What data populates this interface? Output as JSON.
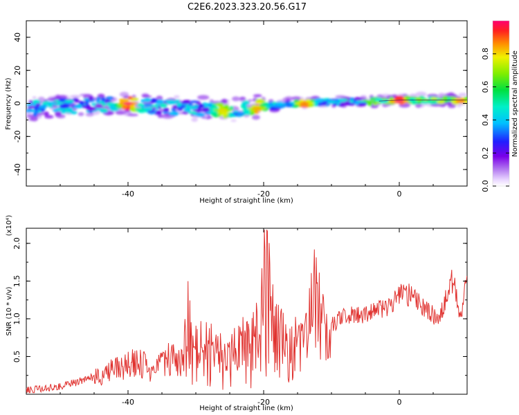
{
  "title": "C2E6.2023.323.20.56.G17",
  "chart_data": [
    {
      "type": "heatmap",
      "title": "C2E6.2023.323.20.56.G17",
      "xlabel": "Height of straight line (km)",
      "ylabel": "Frequency (Hz)",
      "xlim": [
        -55,
        10
      ],
      "ylim": [
        -50,
        50
      ],
      "xticks": [
        -40,
        -20,
        0
      ],
      "yticks": [
        -40,
        -20,
        0,
        20,
        40
      ],
      "colorbar": {
        "label": "Normalized spectral amplitude",
        "range": [
          0,
          1
        ],
        "ticks": [
          "0.0",
          "0.2",
          "0.4",
          "0.6",
          "0.8"
        ],
        "colormap": "white-violet-blue-cyan-green-yellow-orange-red"
      },
      "frequency_centerline": [
        {
          "x": -55,
          "y": -3
        },
        {
          "x": -50,
          "y": -2
        },
        {
          "x": -45,
          "y": -1
        },
        {
          "x": -40,
          "y": 0
        },
        {
          "x": -35,
          "y": -2
        },
        {
          "x": -30,
          "y": -3
        },
        {
          "x": -25,
          "y": -4
        },
        {
          "x": -20,
          "y": -2
        },
        {
          "x": -15,
          "y": 0
        },
        {
          "x": -10,
          "y": 1
        },
        {
          "x": -5,
          "y": 1
        },
        {
          "x": 0,
          "y": 2
        },
        {
          "x": 5,
          "y": 2
        },
        {
          "x": 10,
          "y": 2
        }
      ],
      "intensity_peaks": [
        {
          "x": -40,
          "y": 0,
          "value": 1.0
        },
        {
          "x": -26,
          "y": -4,
          "value": 0.8
        },
        {
          "x": -21,
          "y": -3,
          "value": 0.85
        },
        {
          "x": -14,
          "y": 0,
          "value": 0.9
        },
        {
          "x": 0,
          "y": 1,
          "value": 1.0
        },
        {
          "x": 9,
          "y": 1,
          "value": 0.9
        }
      ]
    },
    {
      "type": "line",
      "xlabel": "Height of straight line (km)",
      "ylabel": "SNR (10 * v/v)",
      "yscale_label": "(x10⁴)",
      "xlim": [
        -55,
        10
      ],
      "ylim": [
        0,
        2.2
      ],
      "xticks": [
        -40,
        -20,
        0
      ],
      "yticks": [
        0.5,
        1.0,
        1.5,
        2.0
      ],
      "ytick_labels": [
        "0.5",
        "1.0",
        "1.5",
        "2.0"
      ],
      "color": "#e0322f",
      "series": [
        {
          "x": [
            -55,
            -52,
            -50,
            -48,
            -46,
            -44,
            -42,
            -40,
            -38,
            -36,
            -34,
            -32,
            -31,
            -30,
            -28,
            -26,
            -24,
            -22,
            -21,
            -20,
            -19.5,
            -19,
            -18,
            -16,
            -14,
            -12.5,
            -11,
            -9,
            -7,
            -5,
            -3,
            -1,
            0,
            2,
            4,
            6,
            7,
            8,
            9,
            10
          ],
          "y": [
            0.05,
            0.08,
            0.1,
            0.15,
            0.2,
            0.27,
            0.33,
            0.4,
            0.38,
            0.3,
            0.45,
            0.5,
            1.2,
            0.6,
            0.7,
            0.5,
            0.6,
            0.75,
            0.9,
            1.35,
            2.1,
            1.35,
            0.8,
            0.7,
            0.6,
            1.3,
            0.8,
            1.0,
            1.05,
            1.05,
            1.12,
            1.2,
            1.35,
            1.3,
            1.1,
            1.0,
            1.3,
            1.55,
            1.0,
            1.5
          ]
        }
      ]
    }
  ]
}
